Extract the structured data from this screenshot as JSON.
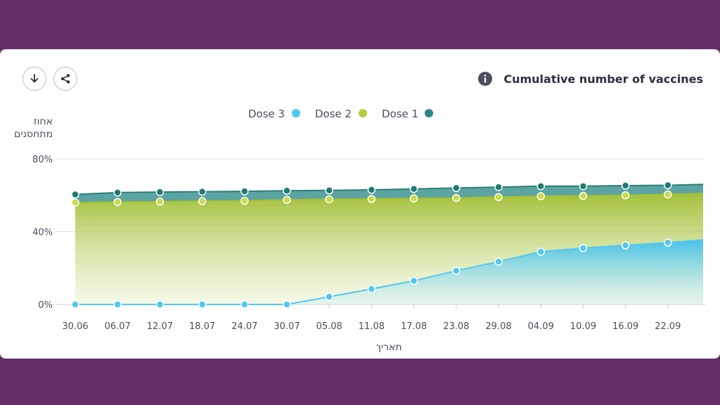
{
  "toolbar": {
    "download_icon": "download-icon",
    "share_icon": "share-icon"
  },
  "header": {
    "title": "Cumulative number of vaccines",
    "info_icon": "info-icon"
  },
  "chart_data": {
    "type": "area",
    "title": "Cumulative number of vaccines",
    "ylabel_lines": [
      "אחוז",
      "מתחסנים"
    ],
    "xlabel": "תאריך",
    "ylim": [
      0,
      80
    ],
    "y_ticks": [
      "0%",
      "40%",
      "80%"
    ],
    "y_tick_values": [
      0,
      40,
      80
    ],
    "grid": true,
    "legend_position": "top",
    "x": [
      "30.06",
      "06.07",
      "12.07",
      "18.07",
      "24.07",
      "30.07",
      "05.08",
      "11.08",
      "17.08",
      "23.08",
      "29.08",
      "04.09",
      "10.09",
      "16.09",
      "22.09"
    ],
    "series": [
      {
        "name": "Dose 1",
        "color": "#2a8585",
        "values": [
          60.5,
          61.5,
          61.8,
          62.0,
          62.2,
          62.5,
          62.7,
          63.0,
          63.5,
          64.0,
          64.5,
          65.0,
          65.0,
          65.3,
          65.5
        ],
        "end_value": 66.0
      },
      {
        "name": "Dose 2",
        "color": "#b8cc3a",
        "values": [
          56.0,
          56.3,
          56.5,
          56.8,
          57.0,
          57.5,
          57.8,
          58.0,
          58.3,
          58.5,
          59.0,
          59.5,
          59.7,
          60.0,
          60.5
        ],
        "end_value": 61.0
      },
      {
        "name": "Dose 3",
        "color": "#52c8f0",
        "values": [
          0,
          0,
          0,
          0,
          0,
          0,
          4.2,
          8.5,
          13.0,
          18.5,
          23.5,
          29.0,
          31.0,
          32.5,
          34.0
        ],
        "end_value": 35.5
      }
    ]
  }
}
